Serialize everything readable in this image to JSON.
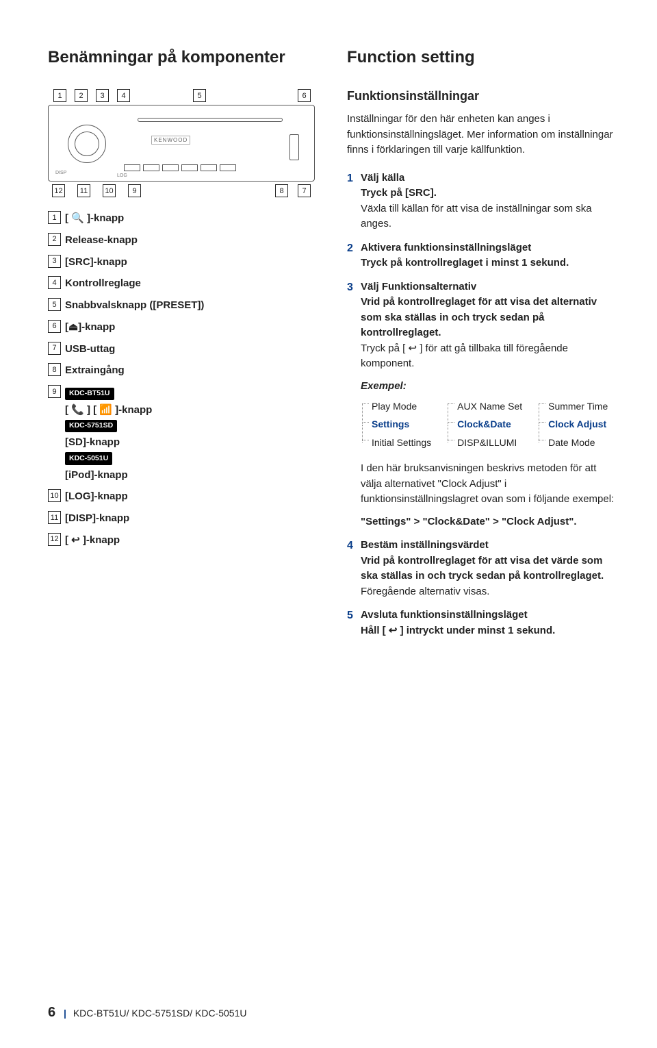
{
  "titles": {
    "left": "Benämningar på komponenter",
    "right": "Function setting"
  },
  "callouts": {
    "top": [
      "1",
      "2",
      "3",
      "4",
      "5",
      "6"
    ],
    "bot": [
      "12",
      "11",
      "10",
      "9",
      "8",
      "7"
    ]
  },
  "legend": [
    {
      "n": "1",
      "label": "[ 🔍 ]-knapp"
    },
    {
      "n": "2",
      "label": "Release-knapp"
    },
    {
      "n": "3",
      "label": "[SRC]-knapp"
    },
    {
      "n": "4",
      "label": "Kontrollreglage"
    },
    {
      "n": "5",
      "label": "Snabbvalsknapp ([PRESET])"
    },
    {
      "n": "6",
      "label": "[⏏]-knapp"
    },
    {
      "n": "7",
      "label": "USB-uttag"
    },
    {
      "n": "8",
      "label": "Extraingång"
    },
    {
      "n": "9",
      "badges": [
        {
          "badge": "KDC-BT51U",
          "text": "[ 📞 ] [ 📶 ]-knapp"
        },
        {
          "badge": "KDC-5751SD",
          "text": "[SD]-knapp"
        },
        {
          "badge": "KDC-5051U",
          "text": "[iPod]-knapp"
        }
      ]
    },
    {
      "n": "10",
      "label": "[LOG]-knapp"
    },
    {
      "n": "11",
      "label": "[DISP]-knapp"
    },
    {
      "n": "12",
      "label": "[ ↩ ]-knapp"
    }
  ],
  "right": {
    "heading": "Funktionsinställningar",
    "intro": "Inställningar för den här enheten kan anges i funktionsinställningsläget. Mer information om inställningar finns i förklaringen till varje källfunktion.",
    "steps": [
      {
        "n": "1",
        "title": "Välj källa",
        "b1": "Tryck på [SRC].",
        "p": "Växla till källan för att visa de inställningar som ska anges."
      },
      {
        "n": "2",
        "title": "Aktivera funktionsinställningsläget",
        "b1": "Tryck på kontrollreglaget i minst 1 sekund."
      },
      {
        "n": "3",
        "title": "Välj Funktionsalternativ",
        "b1": "Vrid på kontrollreglaget för att visa det alternativ som ska ställas in och tryck sedan på kontrollreglaget.",
        "p": "Tryck på [ ↩ ] för att gå tillbaka till föregående komponent."
      },
      {
        "n": "4",
        "title": "Bestäm inställningsvärdet",
        "b1": "Vrid på kontrollreglaget för att visa det värde som ska ställas in och tryck sedan på kontrollreglaget.",
        "p": "Föregående alternativ visas."
      },
      {
        "n": "5",
        "title": "Avsluta funktionsinställningsläget",
        "b1": "Håll [ ↩ ] intryckt under minst 1 sekund."
      }
    ],
    "exampleLabel": "Exempel:",
    "tree": {
      "c1": [
        "Play Mode",
        "Settings",
        "Initial Settings"
      ],
      "c2": [
        "AUX Name Set",
        "Clock&Date",
        "DISP&ILLUMI"
      ],
      "c3": [
        "Summer Time",
        "Clock Adjust",
        "Date Mode"
      ]
    },
    "treeBlue": [
      "Settings",
      "Clock&Date",
      "Clock Adjust"
    ],
    "para": "I den här bruksanvisningen beskrivs metoden för att välja alternativet \"Clock Adjust\" i funktionsinställningslagret ovan som i följande exempel:",
    "path": "\"Settings\" > \"Clock&Date\" > \"Clock Adjust\"."
  },
  "footer": {
    "page": "6",
    "models": "KDC-BT51U/ KDC-5751SD/ KDC-5051U"
  },
  "colors": {
    "accent": "#0a3e8a"
  }
}
